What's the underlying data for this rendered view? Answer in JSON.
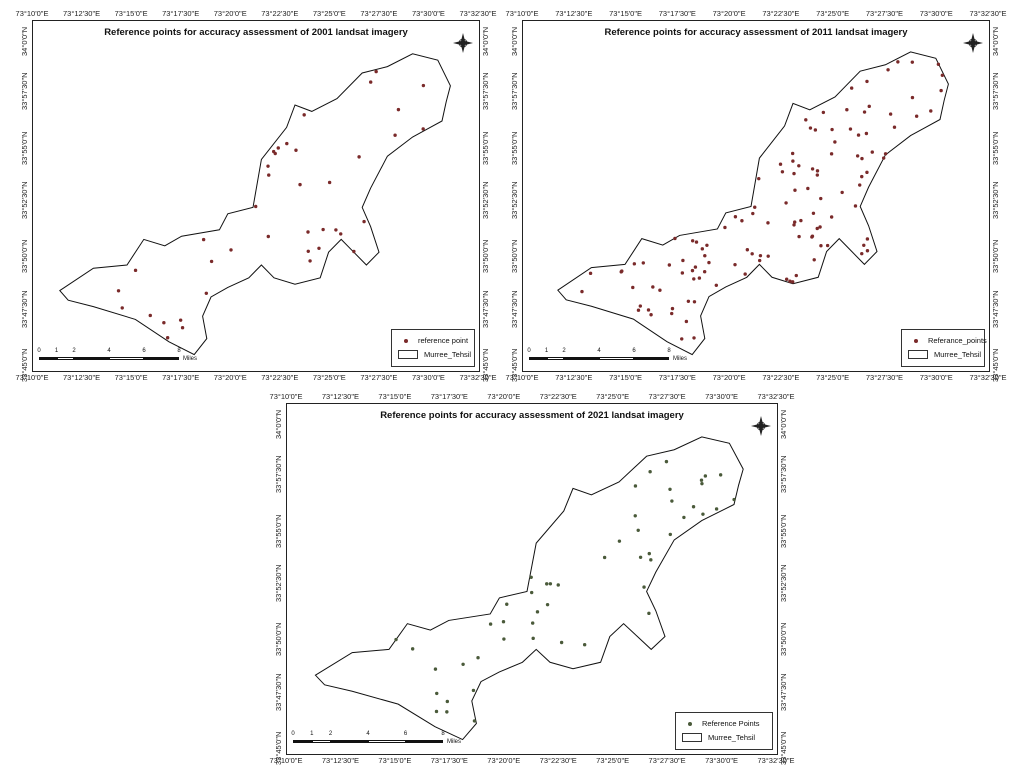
{
  "map_data": {
    "lon_ticks": [
      "73°10'0\"E",
      "73°12'30\"E",
      "73°15'0\"E",
      "73°17'30\"E",
      "73°20'0\"E",
      "73°22'30\"E",
      "73°25'0\"E",
      "73°27'30\"E",
      "73°30'0\"E",
      "73°32'30\"E"
    ],
    "lat_ticks": [
      "34°0'0\"N",
      "33°57'30\"N",
      "33°55'0\"N",
      "33°52'30\"N",
      "33°50'0\"N",
      "33°47'30\"N",
      "33°45'0\"N"
    ],
    "scale_labels": [
      "0",
      "1",
      "2",
      "4",
      "6",
      "8"
    ],
    "maps": [
      {
        "title": "Reference points for accuracy assessment of 2001 landsat imagery",
        "legend_point": "reference point",
        "legend_area": "Murree_Tehsil",
        "scale_unit": "Miles",
        "point_color": "#7a2a2a",
        "point_count": 40
      },
      {
        "title": "Reference points for accuracy assessment of 2011 landsat imagery",
        "legend_point": "Referance_points",
        "legend_area": "Murree_Tehsil",
        "scale_unit": "Miles",
        "point_color": "#7a2a2a",
        "point_count": 120
      },
      {
        "title": "Reference points for accuracy assessment of 2021 landsat imagery",
        "legend_point": "Reference Points",
        "legend_area": "Murree_Tehsil",
        "scale_unit": "Miles",
        "point_color": "#4a5a3a",
        "point_count": 50
      }
    ]
  }
}
